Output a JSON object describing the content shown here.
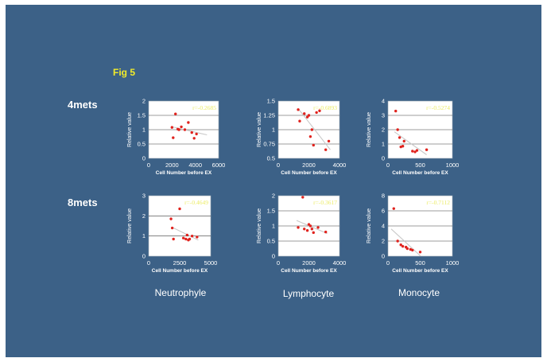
{
  "slide": {
    "fig_label": "Fig 5",
    "row_labels": [
      "4mets",
      "8mets"
    ],
    "column_labels": [
      "Neutrophyle",
      "Lymphocyte",
      "Monocyte"
    ],
    "colors": {
      "background": "#3c6187",
      "plot_background": "#ffffff",
      "fig_label": "#f2ec2a",
      "point": "#e0231e",
      "r_label": "#ecec66"
    }
  },
  "chart_data": [
    {
      "id": "4mets-neutrophyle",
      "type": "scatter",
      "row": "4mets",
      "column": "Neutrophyle",
      "ylabel": "Relative value",
      "xlabel": "Cell Number before EX",
      "xlim": [
        0,
        6000
      ],
      "ylim": [
        0,
        2
      ],
      "xticks": [
        "0",
        "2000",
        "4000",
        "6000"
      ],
      "yticks": [
        "0",
        "0.5",
        "1",
        "1.5",
        "2"
      ],
      "r_label": "r=-0.2685",
      "trend": [
        [
          2000,
          1.1
        ],
        [
          5000,
          0.82
        ]
      ],
      "points": [
        [
          2000,
          1.08
        ],
        [
          2100,
          0.72
        ],
        [
          2300,
          1.55
        ],
        [
          2500,
          1.02
        ],
        [
          2600,
          1.0
        ],
        [
          3100,
          1.0
        ],
        [
          3400,
          1.25
        ],
        [
          3700,
          0.9
        ],
        [
          3900,
          0.7
        ],
        [
          4100,
          0.85
        ],
        [
          2800,
          1.1
        ]
      ]
    },
    {
      "id": "4mets-lymphocyte",
      "type": "scatter",
      "row": "4mets",
      "column": "Lymphocyte",
      "ylabel": "Relative value",
      "xlabel": "Cell Number before EX",
      "xlim": [
        0,
        4000
      ],
      "ylim": [
        0.5,
        1.5
      ],
      "xticks": [
        "0",
        "2000",
        "4000"
      ],
      "yticks": [
        "0.5",
        "0.75",
        "1",
        "1.25",
        "1.5"
      ],
      "r_label": "r=-0.6893",
      "trend": [
        [
          1300,
          1.37
        ],
        [
          3400,
          0.65
        ]
      ],
      "points": [
        [
          1300,
          1.35
        ],
        [
          1400,
          1.15
        ],
        [
          1700,
          1.28
        ],
        [
          1900,
          1.22
        ],
        [
          2000,
          1.25
        ],
        [
          2100,
          0.88
        ],
        [
          2200,
          1.0
        ],
        [
          2300,
          0.73
        ],
        [
          2500,
          1.3
        ],
        [
          2700,
          1.33
        ],
        [
          3100,
          0.65
        ],
        [
          3300,
          0.8
        ]
      ]
    },
    {
      "id": "4mets-monocyte",
      "type": "scatter",
      "row": "4mets",
      "column": "Monocyte",
      "ylabel": "Relative value",
      "xlabel": "Cell Number before EX",
      "xlim": [
        0,
        1000
      ],
      "ylim": [
        0,
        4
      ],
      "xticks": [
        "0",
        "500",
        "1000"
      ],
      "yticks": [
        "0",
        "1",
        "2",
        "3",
        "4"
      ],
      "r_label": "r=-0.5274",
      "trend": [
        [
          100,
          1.85
        ],
        [
          600,
          0.25
        ]
      ],
      "points": [
        [
          120,
          3.3
        ],
        [
          150,
          2.0
        ],
        [
          180,
          1.45
        ],
        [
          200,
          0.8
        ],
        [
          230,
          0.85
        ],
        [
          250,
          1.2
        ],
        [
          380,
          0.5
        ],
        [
          420,
          0.45
        ],
        [
          450,
          0.55
        ],
        [
          600,
          0.6
        ]
      ]
    },
    {
      "id": "8mets-neutrophyle",
      "type": "scatter",
      "row": "8mets",
      "column": "Neutrophyle",
      "ylabel": "Relative value",
      "xlabel": "Cell Number before EX",
      "xlim": [
        0,
        5000
      ],
      "ylim": [
        0,
        3
      ],
      "xticks": [
        "0",
        "2500",
        "5000"
      ],
      "yticks": [
        "0",
        "1",
        "2",
        "3"
      ],
      "r_label": "r=-0.4649",
      "trend": [
        [
          2000,
          1.4
        ],
        [
          4000,
          0.8
        ]
      ],
      "points": [
        [
          1800,
          1.85
        ],
        [
          1900,
          1.4
        ],
        [
          2000,
          0.85
        ],
        [
          2500,
          2.35
        ],
        [
          2800,
          0.9
        ],
        [
          3000,
          0.85
        ],
        [
          3200,
          0.8
        ],
        [
          3300,
          0.85
        ],
        [
          3500,
          1.0
        ],
        [
          3900,
          0.95
        ],
        [
          3100,
          1.05
        ]
      ]
    },
    {
      "id": "8mets-lymphocyte",
      "type": "scatter",
      "row": "8mets",
      "column": "Lymphocyte",
      "ylabel": "Relative value",
      "xlabel": "Cell Number before EX",
      "xlim": [
        0,
        4000
      ],
      "ylim": [
        0,
        2
      ],
      "xticks": [
        "0",
        "2000",
        "4000"
      ],
      "yticks": [
        "0",
        "0.5",
        "1",
        "1.5",
        "2"
      ],
      "r_label": "r=-0.3617",
      "trend": [
        [
          1200,
          1.18
        ],
        [
          3200,
          0.75
        ]
      ],
      "points": [
        [
          1300,
          0.95
        ],
        [
          1600,
          1.95
        ],
        [
          1700,
          0.9
        ],
        [
          1900,
          0.85
        ],
        [
          2000,
          1.05
        ],
        [
          2100,
          1.0
        ],
        [
          2200,
          0.9
        ],
        [
          2300,
          0.78
        ],
        [
          2600,
          0.95
        ],
        [
          3100,
          0.8
        ]
      ]
    },
    {
      "id": "8mets-monocyte",
      "type": "scatter",
      "row": "8mets",
      "column": "Monocyte",
      "ylabel": "Relative value",
      "xlabel": "Cell Number before EX",
      "xlim": [
        0,
        1000
      ],
      "ylim": [
        0,
        8
      ],
      "xticks": [
        "0",
        "500",
        "1000"
      ],
      "yticks": [
        "0",
        "2",
        "4",
        "6",
        "8"
      ],
      "r_label": "r=-0.7112",
      "trend": [
        [
          50,
          3.6
        ],
        [
          560,
          -0.4
        ]
      ],
      "points": [
        [
          90,
          6.3
        ],
        [
          150,
          2.0
        ],
        [
          200,
          1.5
        ],
        [
          230,
          1.3
        ],
        [
          280,
          1.2
        ],
        [
          300,
          1.0
        ],
        [
          350,
          0.9
        ],
        [
          380,
          0.8
        ],
        [
          500,
          0.55
        ]
      ]
    }
  ]
}
